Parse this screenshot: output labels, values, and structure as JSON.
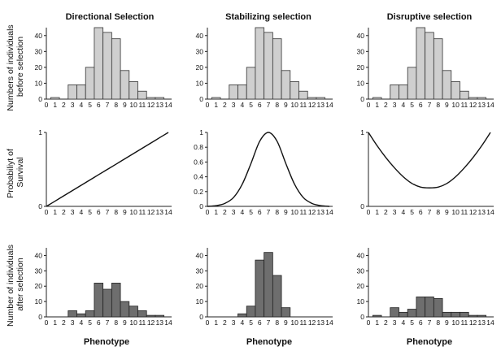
{
  "column_titles": [
    "Directional Selection",
    "Stabilizing selection",
    "Disruptive selection"
  ],
  "row_labels": {
    "before": [
      "Numbers of individuals",
      "before selection"
    ],
    "survival": [
      "Probabiliyt of",
      "Survival"
    ],
    "after": [
      "Number of individuals",
      "after selection"
    ]
  },
  "xlabel": "Phenotype",
  "chart_data": [
    {
      "type": "bar",
      "panel": "directional-before",
      "title": "Directional Selection",
      "x": [
        0,
        1,
        2,
        3,
        4,
        5,
        6,
        7,
        8,
        9,
        10,
        11,
        12,
        13,
        14
      ],
      "values": [
        0,
        1,
        0,
        9,
        9,
        20,
        45,
        42,
        38,
        18,
        11,
        5,
        1,
        1,
        0
      ],
      "ylim": [
        0,
        45
      ],
      "yticks": [
        0,
        10,
        20,
        30,
        40
      ]
    },
    {
      "type": "line",
      "panel": "directional-survival",
      "x": [
        0,
        1,
        2,
        3,
        4,
        5,
        6,
        7,
        8,
        9,
        10,
        11,
        12,
        13,
        14
      ],
      "values": [
        0.0,
        0.071,
        0.143,
        0.214,
        0.286,
        0.357,
        0.429,
        0.5,
        0.571,
        0.643,
        0.714,
        0.786,
        0.857,
        0.929,
        1.0
      ],
      "ylim": [
        0,
        1
      ],
      "yticks": [
        0,
        1
      ]
    },
    {
      "type": "bar",
      "panel": "directional-after",
      "x": [
        0,
        1,
        2,
        3,
        4,
        5,
        6,
        7,
        8,
        9,
        10,
        11,
        12,
        13,
        14
      ],
      "values": [
        0,
        0,
        0,
        4,
        2,
        4,
        22,
        18,
        22,
        10,
        7,
        4,
        1,
        1,
        0
      ],
      "ylim": [
        0,
        45
      ],
      "yticks": [
        0,
        10,
        20,
        30,
        40
      ]
    },
    {
      "type": "bar",
      "panel": "stabilizing-before",
      "title": "Stabilizing selection",
      "x": [
        0,
        1,
        2,
        3,
        4,
        5,
        6,
        7,
        8,
        9,
        10,
        11,
        12,
        13,
        14
      ],
      "values": [
        0,
        1,
        0,
        9,
        9,
        20,
        45,
        42,
        38,
        18,
        11,
        5,
        1,
        1,
        0
      ],
      "ylim": [
        0,
        45
      ],
      "yticks": [
        0,
        10,
        20,
        30,
        40
      ]
    },
    {
      "type": "line",
      "panel": "stabilizing-survival",
      "x": [
        0,
        1,
        2,
        3,
        4,
        5,
        6,
        7,
        8,
        9,
        10,
        11,
        12,
        13,
        14
      ],
      "values": [
        0.0,
        0.01,
        0.04,
        0.12,
        0.3,
        0.58,
        0.88,
        1.0,
        0.88,
        0.58,
        0.3,
        0.12,
        0.04,
        0.01,
        0.0
      ],
      "ylim": [
        0,
        1
      ],
      "yticks": [
        0,
        0.2,
        0.4,
        0.6,
        0.8,
        1
      ]
    },
    {
      "type": "bar",
      "panel": "stabilizing-after",
      "x": [
        0,
        1,
        2,
        3,
        4,
        5,
        6,
        7,
        8,
        9,
        10,
        11,
        12,
        13,
        14
      ],
      "values": [
        0,
        0,
        0,
        0,
        2,
        7,
        37,
        42,
        27,
        6,
        0,
        0,
        0,
        0,
        0
      ],
      "ylim": [
        0,
        45
      ],
      "yticks": [
        0,
        10,
        20,
        30,
        40
      ]
    },
    {
      "type": "bar",
      "panel": "disruptive-before",
      "title": "Disruptive selection",
      "x": [
        0,
        1,
        2,
        3,
        4,
        5,
        6,
        7,
        8,
        9,
        10,
        11,
        12,
        13,
        14
      ],
      "values": [
        0,
        1,
        0,
        9,
        9,
        20,
        45,
        42,
        38,
        18,
        11,
        5,
        1,
        1,
        0
      ],
      "ylim": [
        0,
        45
      ],
      "yticks": [
        0,
        10,
        20,
        30,
        40
      ]
    },
    {
      "type": "line",
      "panel": "disruptive-survival",
      "x": [
        0,
        1,
        2,
        3,
        4,
        5,
        6,
        7,
        8,
        9,
        10,
        11,
        12,
        13,
        14
      ],
      "values": [
        1.0,
        0.82,
        0.66,
        0.52,
        0.4,
        0.31,
        0.26,
        0.25,
        0.26,
        0.31,
        0.4,
        0.52,
        0.66,
        0.82,
        1.0
      ],
      "ylim": [
        0,
        1
      ],
      "yticks": [
        0,
        1
      ]
    },
    {
      "type": "bar",
      "panel": "disruptive-after",
      "x": [
        0,
        1,
        2,
        3,
        4,
        5,
        6,
        7,
        8,
        9,
        10,
        11,
        12,
        13,
        14
      ],
      "values": [
        0,
        1,
        0,
        6,
        3,
        5,
        13,
        13,
        12,
        3,
        3,
        3,
        1,
        1,
        0
      ],
      "ylim": [
        0,
        45
      ],
      "yticks": [
        0,
        10,
        20,
        30,
        40
      ]
    }
  ]
}
